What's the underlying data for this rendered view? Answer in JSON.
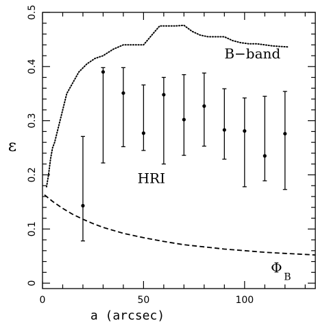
{
  "chart_data": {
    "type": "scatter",
    "title": "",
    "xlabel": "a (arcsec)",
    "ylabel": "ε",
    "xlim": [
      0,
      135
    ],
    "ylim": [
      -0.01,
      0.5
    ],
    "x_ticks": [
      0,
      50,
      100
    ],
    "y_ticks": [
      0,
      0.1,
      0.2,
      0.3,
      0.4,
      0.5
    ],
    "y_tick_labels": [
      "0",
      "0.1",
      "0.2",
      "0.3",
      "0.4",
      "0.5"
    ],
    "grid": false,
    "series": [
      {
        "name": "HRI",
        "style": "points-with-errorbars",
        "color": "#000000",
        "points": [
          {
            "x": 20,
            "y": 0.143,
            "ylo": 0.078,
            "yhi": 0.271
          },
          {
            "x": 30,
            "y": 0.39,
            "ylo": 0.222,
            "yhi": 0.398
          },
          {
            "x": 40,
            "y": 0.351,
            "ylo": 0.252,
            "yhi": 0.398
          },
          {
            "x": 50,
            "y": 0.277,
            "ylo": 0.245,
            "yhi": 0.366
          },
          {
            "x": 60,
            "y": 0.348,
            "ylo": 0.22,
            "yhi": 0.38
          },
          {
            "x": 70,
            "y": 0.302,
            "ylo": 0.236,
            "yhi": 0.385
          },
          {
            "x": 80,
            "y": 0.327,
            "ylo": 0.253,
            "yhi": 0.388
          },
          {
            "x": 90,
            "y": 0.283,
            "ylo": 0.229,
            "yhi": 0.359
          },
          {
            "x": 100,
            "y": 0.281,
            "ylo": 0.178,
            "yhi": 0.342
          },
          {
            "x": 110,
            "y": 0.235,
            "ylo": 0.189,
            "yhi": 0.345
          },
          {
            "x": 120,
            "y": 0.276,
            "ylo": 0.173,
            "yhi": 0.354
          }
        ]
      },
      {
        "name": "B-band",
        "style": "dotted-line",
        "color": "#000000",
        "x": [
          2,
          3,
          4,
          5,
          6,
          8,
          10,
          12,
          15,
          18,
          22,
          26,
          30,
          35,
          40,
          45,
          50,
          55,
          58,
          62,
          66,
          70,
          74,
          78,
          82,
          86,
          90,
          94,
          98,
          102,
          106,
          110,
          114,
          118,
          122
        ],
        "y": [
          0.178,
          0.2,
          0.23,
          0.25,
          0.26,
          0.29,
          0.32,
          0.35,
          0.37,
          0.39,
          0.405,
          0.415,
          0.42,
          0.432,
          0.44,
          0.44,
          0.44,
          0.462,
          0.475,
          0.475,
          0.475,
          0.476,
          0.465,
          0.458,
          0.455,
          0.455,
          0.455,
          0.448,
          0.444,
          0.442,
          0.442,
          0.44,
          0.438,
          0.437,
          0.436
        ]
      },
      {
        "name": "Φ_B",
        "style": "dashed-line",
        "color": "#000000",
        "x": [
          1,
          5,
          10,
          15,
          20,
          25,
          30,
          40,
          50,
          60,
          70,
          80,
          90,
          100,
          110,
          120,
          130,
          135
        ],
        "y": [
          0.163,
          0.151,
          0.138,
          0.127,
          0.118,
          0.11,
          0.103,
          0.092,
          0.084,
          0.077,
          0.071,
          0.067,
          0.063,
          0.06,
          0.057,
          0.055,
          0.053,
          0.052
        ]
      }
    ],
    "annotations": {
      "b_band": {
        "text": "B−band",
        "x": 90,
        "y": 0.415
      },
      "hri": {
        "text": "HRI",
        "x": 47,
        "y": 0.185
      },
      "phi_b_main": {
        "text": "Φ",
        "x": 113,
        "y": 0.02
      },
      "phi_b_sub": {
        "text": "B",
        "x": 119.5,
        "y": 0.006
      }
    }
  }
}
